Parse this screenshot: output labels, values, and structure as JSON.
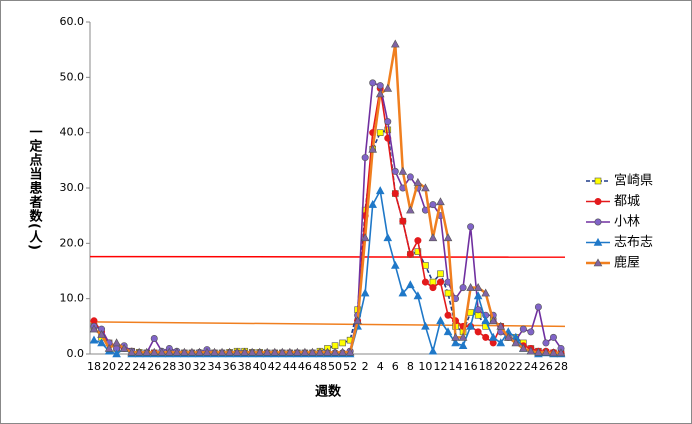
{
  "chart_data": {
    "type": "line",
    "y_label": "一定点当患者数(人)",
    "x_label": "週数",
    "categories": [
      "18",
      null,
      "20",
      null,
      "22",
      null,
      "24",
      null,
      "26",
      null,
      "28",
      null,
      "30",
      null,
      "32",
      null,
      "34",
      null,
      "36",
      null,
      "38",
      null,
      "40",
      null,
      "42",
      null,
      "44",
      null,
      "46",
      null,
      "48",
      null,
      "50",
      null,
      "52",
      null,
      "2",
      null,
      "4",
      null,
      "6",
      null,
      "8",
      null,
      "10",
      null,
      "12",
      null,
      "14",
      null,
      "16",
      null,
      "18",
      null,
      "20",
      null,
      "22",
      null,
      "24",
      null,
      "26",
      null,
      "28"
    ],
    "ylim": [
      0,
      60
    ],
    "yticks": [
      {
        "value": 0,
        "label": "0.0"
      },
      {
        "value": 10,
        "label": "10.0"
      },
      {
        "value": 20,
        "label": "20.0"
      },
      {
        "value": 30,
        "label": "30.0"
      },
      {
        "value": 40,
        "label": "40.0"
      },
      {
        "value": 50,
        "label": "50.0"
      },
      {
        "value": 60,
        "label": "60.0"
      }
    ],
    "grid": false,
    "legend": "right",
    "series": [
      {
        "name": "宮崎県",
        "color": "#1f3c88",
        "dash": true,
        "marker": "square",
        "marker_color": "#ffff00",
        "values": [
          5,
          3,
          2,
          1,
          1,
          0.5,
          0.3,
          0.2,
          0.2,
          0.2,
          0.2,
          0.2,
          0.2,
          0.2,
          0.2,
          0.2,
          0.2,
          0.2,
          0.3,
          0.5,
          0.5,
          0.3,
          0.3,
          0.2,
          0.2,
          0.2,
          0.2,
          0.2,
          0.2,
          0.2,
          0.5,
          1,
          1.5,
          2,
          2.5,
          8,
          26,
          37,
          40,
          40.5,
          29,
          24,
          18,
          18.5,
          16,
          13,
          14.5,
          11,
          5,
          4,
          7.5,
          7,
          5,
          6,
          5,
          3,
          3,
          2,
          1,
          0.5,
          0.3,
          0.2,
          0.1
        ]
      },
      {
        "name": "都城",
        "color": "#e31a1c",
        "dash": false,
        "marker": "circle",
        "marker_color": "#e31a1c",
        "values": [
          6,
          4,
          2,
          1.5,
          1,
          0.5,
          0.2,
          0.2,
          0.2,
          0.2,
          0.2,
          0.2,
          0.2,
          0.2,
          0.2,
          0.2,
          0.2,
          0.2,
          0.2,
          0.2,
          0.2,
          0.2,
          0.2,
          0.2,
          0.2,
          0.2,
          0.2,
          0.2,
          0.2,
          0.2,
          0.2,
          0.2,
          0.2,
          0.2,
          0.5,
          6,
          25,
          40,
          48,
          39,
          29,
          24,
          18,
          20.5,
          13,
          12,
          13,
          7,
          6,
          5,
          5,
          4,
          3,
          2,
          5,
          3,
          2.5,
          1.5,
          1,
          0.5,
          0.5,
          0.3,
          0.2
        ]
      },
      {
        "name": "小林",
        "color": "#7030a0",
        "dash": false,
        "marker": "circle",
        "marker_color": "#8064c8",
        "values": [
          5,
          4.5,
          2,
          1,
          1.5,
          0.5,
          0.2,
          0.2,
          2.8,
          0.5,
          1,
          0.5,
          0.2,
          0.2,
          0.3,
          0.8,
          0.2,
          0.2,
          0.2,
          0.2,
          0.2,
          0.2,
          0.2,
          0.2,
          0.2,
          0.2,
          0.2,
          0.2,
          0.2,
          0.2,
          0.2,
          0.2,
          0.2,
          0.2,
          0.5,
          7,
          35.5,
          49,
          48.5,
          42,
          33,
          30,
          32,
          30,
          26,
          27,
          25,
          13,
          10,
          12,
          23,
          8,
          7,
          7,
          4,
          3,
          2.5,
          4.5,
          4,
          8.5,
          2,
          3,
          1
        ]
      },
      {
        "name": "志布志",
        "color": "#1f78c8",
        "dash": false,
        "marker": "triangle",
        "marker_color": "#1f78c8",
        "values": [
          2.5,
          2,
          0.5,
          0,
          1,
          0,
          0,
          0,
          0,
          0,
          0,
          0,
          0,
          0,
          0,
          0,
          0,
          0,
          0,
          0,
          0,
          0,
          0,
          0,
          0,
          0,
          0,
          0,
          0,
          0,
          0,
          0,
          0,
          0,
          0,
          5,
          11,
          27,
          29.5,
          21,
          16,
          11,
          12.5,
          10.5,
          5,
          0.5,
          6,
          4,
          2,
          1.5,
          5,
          10.5,
          6,
          3,
          2,
          4,
          3,
          1,
          0.5,
          0,
          0.2,
          0,
          0
        ]
      },
      {
        "name": "鹿屋",
        "color": "#f07f1f",
        "dash": false,
        "marker": "triangle",
        "marker_color": "#8064a2",
        "width": 2.5,
        "values": [
          4.5,
          3.5,
          1,
          2,
          1,
          0.3,
          0.3,
          0.3,
          0.3,
          0.3,
          0.3,
          0.3,
          0.3,
          0.3,
          0.3,
          0.3,
          0.3,
          0.3,
          0.3,
          0.3,
          0.3,
          0.3,
          0.3,
          0.3,
          0.3,
          0.3,
          0.3,
          0.3,
          0.3,
          0.3,
          0.3,
          0.3,
          0.3,
          0.3,
          0.3,
          6,
          21,
          37,
          47,
          48,
          56,
          33,
          26,
          31,
          30,
          21,
          27.5,
          21,
          3,
          3,
          12,
          12,
          11,
          6,
          5,
          3,
          2,
          1,
          0.5,
          0.3,
          0.3,
          0.2,
          0.2
        ]
      }
    ],
    "reference_lines": [
      {
        "color": "#ff0000",
        "values": [
          17.6,
          17.5
        ]
      },
      {
        "color": "#f07f1f",
        "values": [
          5.8,
          5.0
        ]
      }
    ]
  }
}
